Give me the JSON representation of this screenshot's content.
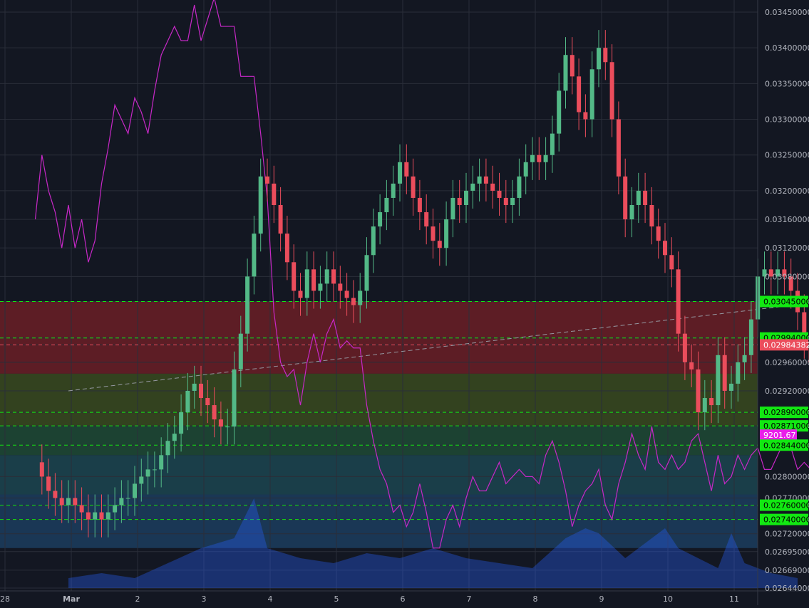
{
  "theme": {
    "background": "#131722",
    "grid": "#2a2e39",
    "up": "#53b987",
    "down": "#eb4d5c",
    "overlay_line": "#c728c7",
    "green_label": "#12e812",
    "red_label": "#eb4d5c",
    "magenta_label": "#e91ee9",
    "axis_text": "#b2b5be"
  },
  "chart_data": {
    "type": "candlestick",
    "symbol_period": "March",
    "x_axis_labels": [
      "28",
      "Mar",
      "2",
      "3",
      "4",
      "5",
      "6",
      "7",
      "8",
      "9",
      "10",
      "11"
    ],
    "y_axis_ticks": [
      "0.03450000",
      "0.03400000",
      "0.03350000",
      "0.03300000",
      "0.03250000",
      "0.03200000",
      "0.03160000",
      "0.03120000",
      "0.03080000",
      "0.03045000",
      "0.02994000",
      "0.02984382",
      "0.02960000",
      "0.02920000",
      "0.02890000",
      "0.02871000",
      "0.02844000",
      "0.02800000",
      "0.02770000",
      "0.02760000",
      "0.02740000",
      "0.02720000",
      "0.02695000",
      "0.02669000",
      "0.02644000"
    ],
    "y_range": [
      0.02644,
      0.0345
    ],
    "highlighted_levels": [
      {
        "label": "0.03045000",
        "kind": "green"
      },
      {
        "label": "0.02994000",
        "kind": "green"
      },
      {
        "label": "0.02984382",
        "kind": "red"
      },
      {
        "label": "0.02890000",
        "kind": "green"
      },
      {
        "label": "0.02871000",
        "kind": "green"
      },
      {
        "label": "9201.67",
        "kind": "magenta"
      },
      {
        "label": "0.02844000",
        "kind": "green"
      },
      {
        "label": "0.02760000",
        "kind": "green"
      },
      {
        "label": "0.02740000",
        "kind": "green"
      }
    ],
    "zones": [
      {
        "from": 0.03045,
        "to": 0.02944,
        "color": "#6b1e26"
      },
      {
        "from": 0.02944,
        "to": 0.02871,
        "color": "#3a4a1e"
      },
      {
        "from": 0.02871,
        "to": 0.0283,
        "color": "#1f4a35"
      },
      {
        "from": 0.0283,
        "to": 0.02775,
        "color": "#1c4550"
      },
      {
        "from": 0.02775,
        "to": 0.027,
        "color": "#1c3d5e"
      }
    ],
    "trend_line": {
      "start": [
        0,
        0.0292
      ],
      "end": [
        11.4,
        0.03045
      ]
    },
    "price_series": [
      [
        -0.5,
        0.0282
      ],
      [
        -0.4,
        0.028
      ],
      [
        -0.3,
        0.0278
      ],
      [
        -0.2,
        0.0277
      ],
      [
        -0.1,
        0.0276
      ],
      [
        0.0,
        0.0277
      ],
      [
        0.1,
        0.0276
      ],
      [
        0.2,
        0.0275
      ],
      [
        0.3,
        0.0274
      ],
      [
        0.4,
        0.0275
      ],
      [
        0.5,
        0.0274
      ],
      [
        0.6,
        0.0275
      ],
      [
        0.7,
        0.0276
      ],
      [
        0.8,
        0.0277
      ],
      [
        0.9,
        0.0277
      ],
      [
        1.0,
        0.0279
      ],
      [
        1.1,
        0.028
      ],
      [
        1.2,
        0.0281
      ],
      [
        1.3,
        0.0281
      ],
      [
        1.4,
        0.0283
      ],
      [
        1.5,
        0.0285
      ],
      [
        1.6,
        0.0286
      ],
      [
        1.7,
        0.0289
      ],
      [
        1.8,
        0.0292
      ],
      [
        1.9,
        0.0293
      ],
      [
        2.0,
        0.0291
      ],
      [
        2.1,
        0.029
      ],
      [
        2.2,
        0.0288
      ],
      [
        2.3,
        0.0287
      ],
      [
        2.4,
        0.0287
      ],
      [
        2.5,
        0.0295
      ],
      [
        2.6,
        0.03
      ],
      [
        2.7,
        0.0308
      ],
      [
        2.8,
        0.0314
      ],
      [
        2.9,
        0.0322
      ],
      [
        3.0,
        0.0321
      ],
      [
        3.1,
        0.0318
      ],
      [
        3.2,
        0.0314
      ],
      [
        3.3,
        0.031
      ],
      [
        3.4,
        0.0306
      ],
      [
        3.5,
        0.0305
      ],
      [
        3.6,
        0.0309
      ],
      [
        3.7,
        0.0306
      ],
      [
        3.8,
        0.0307
      ],
      [
        3.9,
        0.0309
      ],
      [
        4.0,
        0.0307
      ],
      [
        4.1,
        0.0306
      ],
      [
        4.2,
        0.0305
      ],
      [
        4.3,
        0.0304
      ],
      [
        4.4,
        0.0306
      ],
      [
        4.5,
        0.0311
      ],
      [
        4.6,
        0.0315
      ],
      [
        4.7,
        0.0317
      ],
      [
        4.8,
        0.0319
      ],
      [
        4.9,
        0.0321
      ],
      [
        5.0,
        0.0324
      ],
      [
        5.1,
        0.0322
      ],
      [
        5.2,
        0.0319
      ],
      [
        5.3,
        0.0317
      ],
      [
        5.4,
        0.0315
      ],
      [
        5.5,
        0.0313
      ],
      [
        5.6,
        0.0312
      ],
      [
        5.7,
        0.0316
      ],
      [
        5.8,
        0.0319
      ],
      [
        5.9,
        0.0318
      ],
      [
        6.0,
        0.032
      ],
      [
        6.1,
        0.0321
      ],
      [
        6.2,
        0.0322
      ],
      [
        6.3,
        0.0321
      ],
      [
        6.4,
        0.032
      ],
      [
        6.5,
        0.0319
      ],
      [
        6.6,
        0.0318
      ],
      [
        6.7,
        0.0319
      ],
      [
        6.8,
        0.0322
      ],
      [
        6.9,
        0.0324
      ],
      [
        7.0,
        0.0325
      ],
      [
        7.1,
        0.0324
      ],
      [
        7.2,
        0.0325
      ],
      [
        7.3,
        0.0328
      ],
      [
        7.4,
        0.0334
      ],
      [
        7.5,
        0.0339
      ],
      [
        7.6,
        0.0336
      ],
      [
        7.7,
        0.0331
      ],
      [
        7.8,
        0.033
      ],
      [
        7.9,
        0.0337
      ],
      [
        8.0,
        0.034
      ],
      [
        8.1,
        0.0338
      ],
      [
        8.2,
        0.033
      ],
      [
        8.3,
        0.0322
      ],
      [
        8.4,
        0.0316
      ],
      [
        8.5,
        0.0318
      ],
      [
        8.6,
        0.032
      ],
      [
        8.7,
        0.0318
      ],
      [
        8.8,
        0.0315
      ],
      [
        8.9,
        0.0313
      ],
      [
        9.0,
        0.0311
      ],
      [
        9.1,
        0.0309
      ],
      [
        9.2,
        0.03
      ],
      [
        9.3,
        0.0296
      ],
      [
        9.4,
        0.0295
      ],
      [
        9.5,
        0.0289
      ],
      [
        9.6,
        0.0291
      ],
      [
        9.7,
        0.029
      ],
      [
        9.8,
        0.0297
      ],
      [
        9.9,
        0.0292
      ],
      [
        10.0,
        0.0293
      ],
      [
        10.1,
        0.0296
      ],
      [
        10.2,
        0.0297
      ],
      [
        10.3,
        0.0302
      ],
      [
        10.4,
        0.0308
      ],
      [
        10.5,
        0.0309
      ],
      [
        10.6,
        0.0308
      ],
      [
        10.7,
        0.0309
      ],
      [
        10.8,
        0.0308
      ],
      [
        10.9,
        0.0306
      ],
      [
        11.0,
        0.0303
      ],
      [
        11.1,
        0.0299
      ],
      [
        11.2,
        0.0296
      ],
      [
        11.3,
        0.0299
      ]
    ],
    "overlay_series": [
      [
        -0.5,
        0.0316
      ],
      [
        -0.4,
        0.0325
      ],
      [
        -0.3,
        0.032
      ],
      [
        -0.2,
        0.0317
      ],
      [
        -0.1,
        0.0312
      ],
      [
        0.0,
        0.0318
      ],
      [
        0.1,
        0.0312
      ],
      [
        0.2,
        0.0316
      ],
      [
        0.3,
        0.031
      ],
      [
        0.4,
        0.0313
      ],
      [
        0.5,
        0.0321
      ],
      [
        0.6,
        0.0326
      ],
      [
        0.7,
        0.0332
      ],
      [
        0.8,
        0.033
      ],
      [
        0.9,
        0.0328
      ],
      [
        1.0,
        0.0333
      ],
      [
        1.1,
        0.0331
      ],
      [
        1.2,
        0.0328
      ],
      [
        1.3,
        0.0334
      ],
      [
        1.4,
        0.0339
      ],
      [
        1.5,
        0.0341
      ],
      [
        1.6,
        0.0343
      ],
      [
        1.7,
        0.0341
      ],
      [
        1.8,
        0.0341
      ],
      [
        1.9,
        0.0346
      ],
      [
        2.0,
        0.0341
      ],
      [
        2.1,
        0.0344
      ],
      [
        2.2,
        0.0347
      ],
      [
        2.3,
        0.0343
      ],
      [
        2.4,
        0.0343
      ],
      [
        2.5,
        0.0343
      ],
      [
        2.6,
        0.0336
      ],
      [
        2.7,
        0.0336
      ],
      [
        2.8,
        0.0336
      ],
      [
        2.9,
        0.0328
      ],
      [
        3.0,
        0.0319
      ],
      [
        3.1,
        0.0303
      ],
      [
        3.2,
        0.0296
      ],
      [
        3.3,
        0.0294
      ],
      [
        3.4,
        0.0295
      ],
      [
        3.5,
        0.029
      ],
      [
        3.6,
        0.0296
      ],
      [
        3.7,
        0.03
      ],
      [
        3.8,
        0.0296
      ],
      [
        3.9,
        0.03
      ],
      [
        4.0,
        0.0302
      ],
      [
        4.1,
        0.0298
      ],
      [
        4.2,
        0.0299
      ],
      [
        4.3,
        0.0298
      ],
      [
        4.4,
        0.0298
      ],
      [
        4.5,
        0.029
      ],
      [
        4.6,
        0.0285
      ],
      [
        4.7,
        0.0281
      ],
      [
        4.8,
        0.0279
      ],
      [
        4.9,
        0.0275
      ],
      [
        5.0,
        0.0276
      ],
      [
        5.1,
        0.0273
      ],
      [
        5.2,
        0.0275
      ],
      [
        5.3,
        0.0279
      ],
      [
        5.4,
        0.0275
      ],
      [
        5.5,
        0.027
      ],
      [
        5.6,
        0.027
      ],
      [
        5.7,
        0.0274
      ],
      [
        5.8,
        0.0276
      ],
      [
        5.9,
        0.0273
      ],
      [
        6.0,
        0.0277
      ],
      [
        6.1,
        0.028
      ],
      [
        6.2,
        0.0278
      ],
      [
        6.3,
        0.0278
      ],
      [
        6.4,
        0.028
      ],
      [
        6.5,
        0.0282
      ],
      [
        6.6,
        0.0279
      ],
      [
        6.7,
        0.028
      ],
      [
        6.8,
        0.0281
      ],
      [
        6.9,
        0.028
      ],
      [
        7.0,
        0.028
      ],
      [
        7.1,
        0.0279
      ],
      [
        7.2,
        0.0283
      ],
      [
        7.3,
        0.0285
      ],
      [
        7.4,
        0.0282
      ],
      [
        7.5,
        0.0278
      ],
      [
        7.6,
        0.0273
      ],
      [
        7.7,
        0.0276
      ],
      [
        7.8,
        0.0278
      ],
      [
        7.9,
        0.0279
      ],
      [
        8.0,
        0.0281
      ],
      [
        8.1,
        0.0276
      ],
      [
        8.2,
        0.0274
      ],
      [
        8.3,
        0.0279
      ],
      [
        8.4,
        0.0282
      ],
      [
        8.5,
        0.0286
      ],
      [
        8.6,
        0.0283
      ],
      [
        8.7,
        0.0281
      ],
      [
        8.8,
        0.0287
      ],
      [
        8.9,
        0.0282
      ],
      [
        9.0,
        0.0281
      ],
      [
        9.1,
        0.0283
      ],
      [
        9.2,
        0.0281
      ],
      [
        9.3,
        0.0282
      ],
      [
        9.4,
        0.0285
      ],
      [
        9.5,
        0.0286
      ],
      [
        9.6,
        0.0282
      ],
      [
        9.7,
        0.0278
      ],
      [
        9.8,
        0.0283
      ],
      [
        9.9,
        0.0279
      ],
      [
        10.0,
        0.028
      ],
      [
        10.1,
        0.0283
      ],
      [
        10.2,
        0.0281
      ],
      [
        10.3,
        0.0283
      ],
      [
        10.4,
        0.0284
      ],
      [
        10.5,
        0.0281
      ],
      [
        10.6,
        0.0281
      ],
      [
        10.7,
        0.0283
      ],
      [
        10.8,
        0.0285
      ],
      [
        10.9,
        0.0284
      ],
      [
        11.0,
        0.0281
      ],
      [
        11.1,
        0.0282
      ],
      [
        11.2,
        0.0281
      ],
      [
        11.3,
        0.0278
      ]
    ],
    "volume_series": [
      [
        0.0,
        0.1
      ],
      [
        0.5,
        0.15
      ],
      [
        1.0,
        0.1
      ],
      [
        1.5,
        0.25
      ],
      [
        2.0,
        0.4
      ],
      [
        2.5,
        0.5
      ],
      [
        2.8,
        0.9
      ],
      [
        3.0,
        0.4
      ],
      [
        3.5,
        0.3
      ],
      [
        4.0,
        0.25
      ],
      [
        4.5,
        0.35
      ],
      [
        5.0,
        0.3
      ],
      [
        5.5,
        0.4
      ],
      [
        6.0,
        0.3
      ],
      [
        6.5,
        0.25
      ],
      [
        7.0,
        0.2
      ],
      [
        7.5,
        0.5
      ],
      [
        7.8,
        0.6
      ],
      [
        8.0,
        0.55
      ],
      [
        8.4,
        0.3
      ],
      [
        9.0,
        0.6
      ],
      [
        9.2,
        0.4
      ],
      [
        9.5,
        0.3
      ],
      [
        9.8,
        0.2
      ],
      [
        10.0,
        0.55
      ],
      [
        10.2,
        0.25
      ],
      [
        10.6,
        0.15
      ],
      [
        11.0,
        0.1
      ]
    ]
  }
}
